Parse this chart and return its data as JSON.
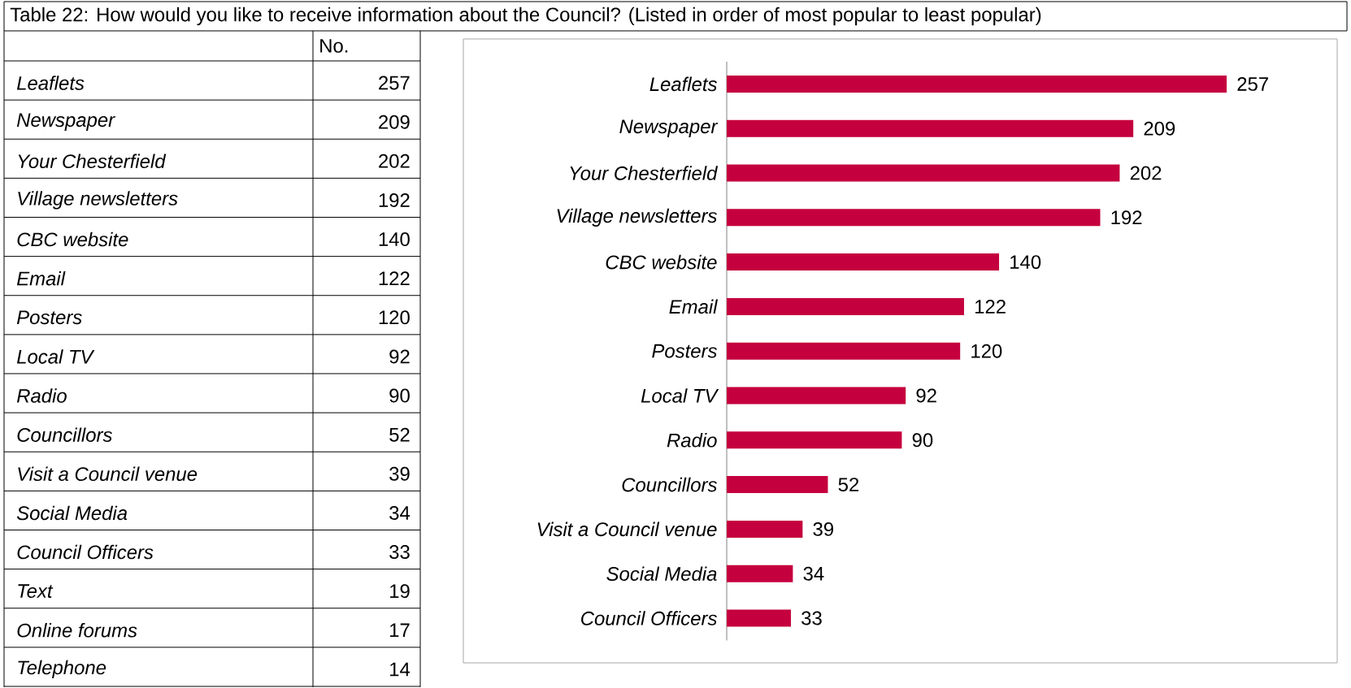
{
  "chart_data": [
    {
      "type": "other",
      "data_labels": true,
      "title": "Table 22: How would you like to receive information about the Council? (Listed in order of most popular to least popular)",
      "xlabel": "No.",
      "categories": [
        "Leaflets",
        "Newspaper",
        "Your Chesterfield",
        "Village newsletters",
        "CBC website",
        "Email",
        "Posters",
        "Local TV",
        "Radio",
        "Councillors",
        "Visit a Council venue",
        "Social Media",
        "Council Officers",
        "Text",
        "Online forums",
        "Telephone"
      ],
      "values": [
        257,
        209,
        202,
        192,
        140,
        122,
        120,
        92,
        90,
        52,
        39,
        34,
        33,
        19,
        17,
        14
      ]
    },
    {
      "type": "bar",
      "orientation": "horizontal",
      "data_labels": true,
      "color": "#c5003e",
      "categories": [
        "Leaflets",
        "Newspaper",
        "Your Chesterfield",
        "Village newsletters",
        "CBC website",
        "Email",
        "Posters",
        "Local TV",
        "Radio",
        "Councillors",
        "Visit a Council venue",
        "Social Media",
        "Council Officers"
      ],
      "values": [
        257,
        209,
        202,
        192,
        140,
        122,
        120,
        92,
        90,
        52,
        39,
        34,
        33
      ]
    }
  ]
}
